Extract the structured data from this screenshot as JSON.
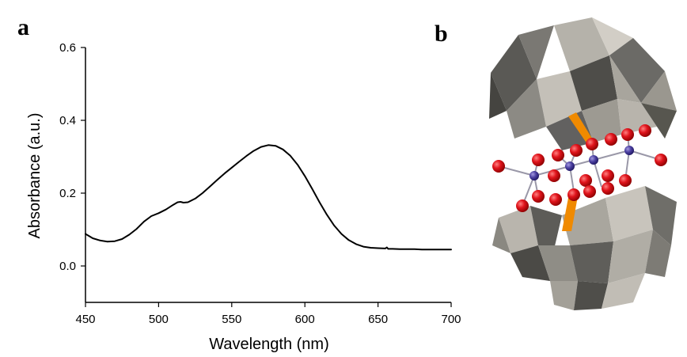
{
  "panels": {
    "a": "a",
    "b": "b"
  },
  "chart_data": {
    "type": "line",
    "title": "",
    "xlabel": "Wavelength (nm)",
    "ylabel": "Absorbance (a.u.)",
    "xlim": [
      450,
      700
    ],
    "ylim": [
      -0.1,
      0.6
    ],
    "xticks": [
      450,
      500,
      550,
      600,
      650,
      700
    ],
    "xtick_labels": [
      "450",
      "500",
      "550",
      "600",
      "650",
      "700"
    ],
    "yticks": [
      0.0,
      0.2,
      0.4,
      0.6
    ],
    "ytick_labels": [
      "0.0",
      "0.2",
      "0.4",
      "0.6"
    ],
    "grid": false,
    "series": [
      {
        "name": "absorbance",
        "color": "#000000",
        "x": [
          450,
          455,
          460,
          465,
          470,
          475,
          480,
          485,
          490,
          495,
          500,
          505,
          510,
          513,
          515,
          517,
          520,
          525,
          530,
          535,
          540,
          545,
          550,
          555,
          560,
          565,
          570,
          575,
          580,
          585,
          590,
          595,
          600,
          605,
          610,
          615,
          620,
          625,
          630,
          635,
          640,
          645,
          650,
          655,
          656,
          657,
          660,
          665,
          670,
          675,
          680,
          685,
          690,
          695,
          700
        ],
        "y": [
          0.088,
          0.076,
          0.07,
          0.067,
          0.068,
          0.074,
          0.086,
          0.102,
          0.122,
          0.137,
          0.145,
          0.155,
          0.168,
          0.175,
          0.176,
          0.174,
          0.175,
          0.185,
          0.2,
          0.218,
          0.236,
          0.254,
          0.27,
          0.286,
          0.302,
          0.316,
          0.327,
          0.332,
          0.33,
          0.32,
          0.303,
          0.278,
          0.247,
          0.212,
          0.175,
          0.141,
          0.111,
          0.088,
          0.071,
          0.06,
          0.053,
          0.05,
          0.049,
          0.048,
          0.051,
          0.047,
          0.047,
          0.046,
          0.046,
          0.046,
          0.045,
          0.045,
          0.045,
          0.045,
          0.045
        ]
      }
    ]
  },
  "structure": {
    "polyhedra_color": "#8c8a84",
    "oxygen_color": "#e0141c",
    "metal_color": "#4a3fa0",
    "bond_color": "#f08a00"
  }
}
